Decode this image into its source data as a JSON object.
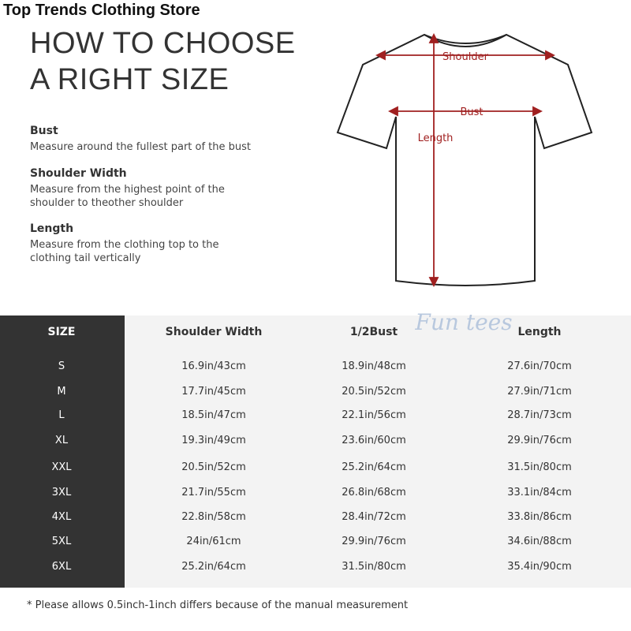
{
  "store_name": "Top Trends Clothing Store",
  "title": {
    "line1": "HOW TO CHOOSE",
    "line2": "A RIGHT SIZE"
  },
  "guide": [
    {
      "heading": "Bust",
      "text": "Measure around the fullest part of the bust"
    },
    {
      "heading": "Shoulder Width",
      "text": "Measure from the highest point of the shoulder to theother shoulder"
    },
    {
      "heading": "Length",
      "text": "Measure from the clothing top to the clothing tail vertically"
    }
  ],
  "diagram": {
    "shoulder": "Shoulder",
    "bust": "Bust",
    "length": "Length",
    "arrow_color": "#a02020"
  },
  "watermark": "Fun tees",
  "table": {
    "headers": [
      "SIZE",
      "Shoulder Width",
      "1/2Bust",
      "Length"
    ],
    "rows": [
      [
        "S",
        "16.9in/43cm",
        "18.9in/48cm",
        "27.6in/70cm"
      ],
      [
        "M",
        "17.7in/45cm",
        "20.5in/52cm",
        "27.9in/71cm"
      ],
      [
        "L",
        "18.5in/47cm",
        "22.1in/56cm",
        "28.7in/73cm"
      ],
      [
        "XL",
        "19.3in/49cm",
        "23.6in/60cm",
        "29.9in/76cm"
      ],
      [
        "XXL",
        "20.5in/52cm",
        "25.2in/64cm",
        "31.5in/80cm"
      ],
      [
        "3XL",
        "21.7in/55cm",
        "26.8in/68cm",
        "33.1in/84cm"
      ],
      [
        "4XL",
        "22.8in/58cm",
        "28.4in/72cm",
        "33.8in/86cm"
      ],
      [
        "5XL",
        "24in/61cm",
        "29.9in/76cm",
        "34.6in/88cm"
      ],
      [
        "6XL",
        "25.2in/64cm",
        "31.5in/80cm",
        "35.4in/90cm"
      ]
    ]
  },
  "note": "* Please allows 0.5inch-1inch differs because of the  manual measurement"
}
